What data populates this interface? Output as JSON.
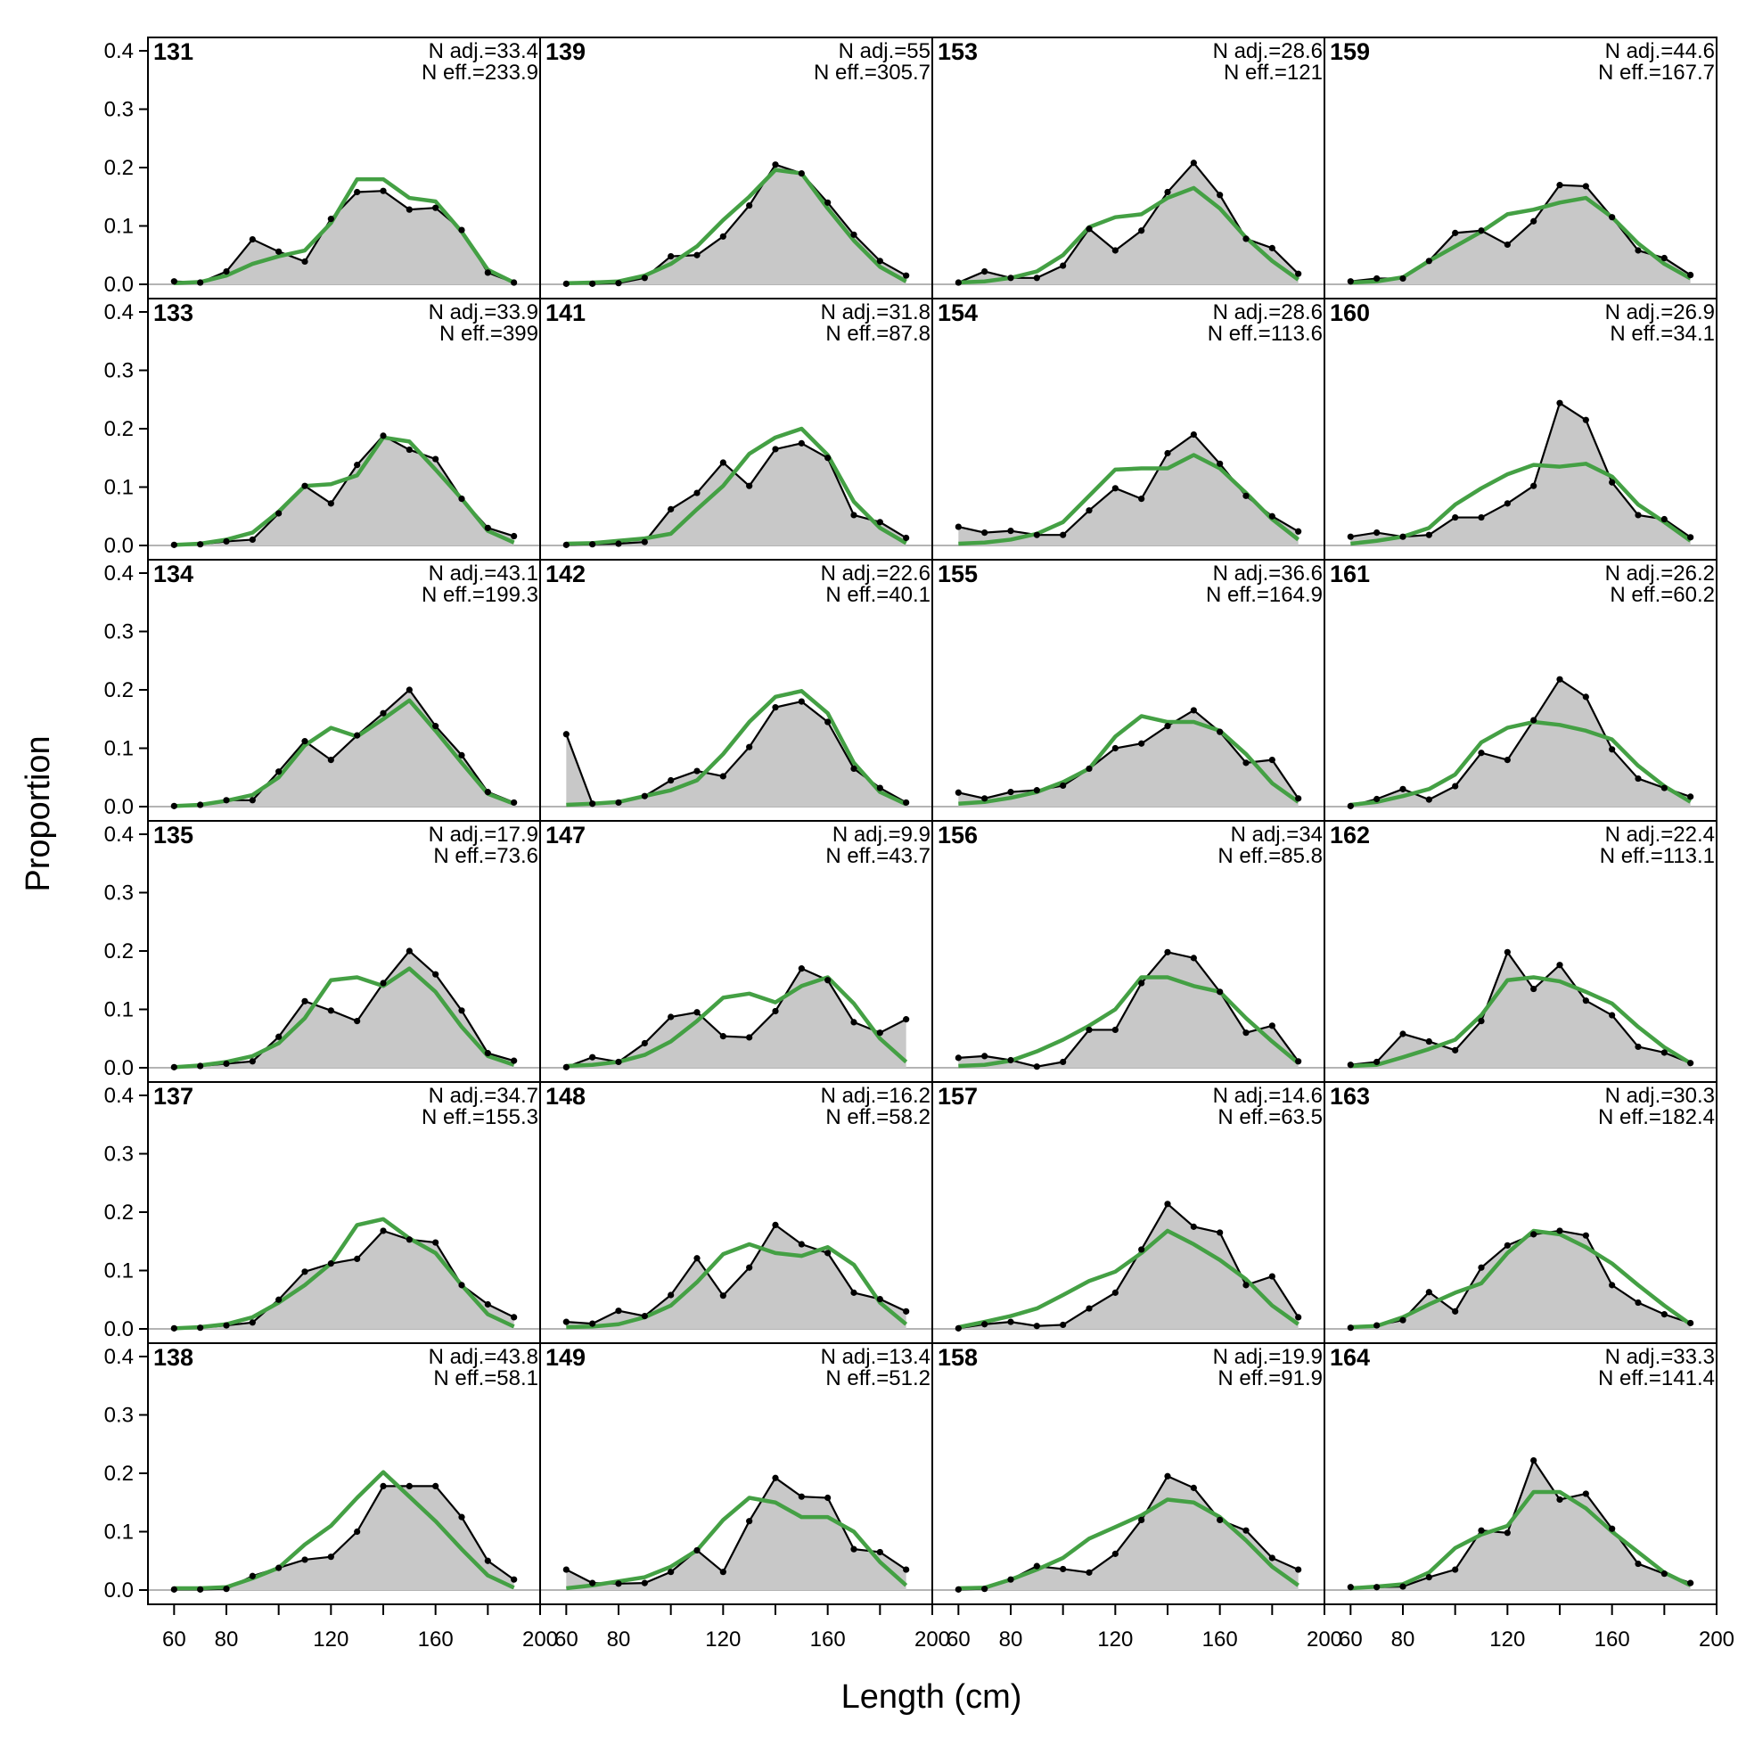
{
  "chart_data": {
    "type": "area",
    "xlabel": "Length (cm)",
    "ylabel": "Proportion",
    "x": [
      60,
      70,
      80,
      90,
      100,
      110,
      120,
      130,
      140,
      150,
      160,
      170,
      180,
      190
    ],
    "xlim": [
      50,
      200
    ],
    "ylim": [
      0,
      0.42
    ],
    "x_ticks": [
      60,
      80,
      120,
      160,
      200
    ],
    "y_ticks": [
      "0.0",
      "0.1",
      "0.2",
      "0.3",
      "0.4"
    ],
    "layout": "6 rows x 4 columns, filled column-wise",
    "colors": {
      "observed_fill": "#c8c8c8",
      "observed_line": "#000000",
      "expected_line": "#44a044",
      "zero_line": "#b4b4b4"
    },
    "panels": [
      {
        "id": "131",
        "n_adj": "N adj.=33.4",
        "n_eff": "N eff.=233.9",
        "obs": [
          0.005,
          0.003,
          0.022,
          0.077,
          0.056,
          0.039,
          0.112,
          0.158,
          0.16,
          0.128,
          0.131,
          0.093,
          0.02,
          0.003
        ],
        "exp": [
          0.002,
          0.004,
          0.015,
          0.035,
          0.048,
          0.058,
          0.105,
          0.18,
          0.18,
          0.148,
          0.142,
          0.09,
          0.025,
          0.003
        ]
      },
      {
        "id": "133",
        "n_adj": "N adj.=33.9",
        "n_eff": "N eff.=399",
        "obs": [
          0.001,
          0.002,
          0.007,
          0.01,
          0.055,
          0.102,
          0.072,
          0.138,
          0.188,
          0.164,
          0.148,
          0.08,
          0.03,
          0.016
        ],
        "exp": [
          0.001,
          0.003,
          0.01,
          0.022,
          0.058,
          0.102,
          0.105,
          0.12,
          0.185,
          0.178,
          0.13,
          0.08,
          0.025,
          0.005
        ]
      },
      {
        "id": "134",
        "n_adj": "N adj.=43.1",
        "n_eff": "N eff.=199.3",
        "obs": [
          0.001,
          0.003,
          0.011,
          0.011,
          0.06,
          0.112,
          0.08,
          0.122,
          0.16,
          0.2,
          0.138,
          0.088,
          0.025,
          0.007
        ],
        "exp": [
          0.001,
          0.003,
          0.01,
          0.02,
          0.05,
          0.105,
          0.135,
          0.12,
          0.15,
          0.182,
          0.13,
          0.075,
          0.022,
          0.005
        ]
      },
      {
        "id": "135",
        "n_adj": "N adj.=17.9",
        "n_eff": "N eff.=73.6",
        "obs": [
          0.001,
          0.003,
          0.007,
          0.011,
          0.053,
          0.114,
          0.098,
          0.08,
          0.145,
          0.2,
          0.16,
          0.098,
          0.025,
          0.012
        ],
        "exp": [
          0.001,
          0.004,
          0.01,
          0.02,
          0.042,
          0.085,
          0.15,
          0.155,
          0.14,
          0.17,
          0.13,
          0.07,
          0.02,
          0.005
        ]
      },
      {
        "id": "137",
        "n_adj": "N adj.=34.7",
        "n_eff": "N eff.=155.3",
        "obs": [
          0.001,
          0.002,
          0.006,
          0.011,
          0.05,
          0.098,
          0.112,
          0.12,
          0.168,
          0.153,
          0.148,
          0.075,
          0.042,
          0.02
        ],
        "exp": [
          0.001,
          0.003,
          0.008,
          0.02,
          0.045,
          0.075,
          0.112,
          0.178,
          0.188,
          0.155,
          0.13,
          0.075,
          0.025,
          0.004
        ]
      },
      {
        "id": "138",
        "n_adj": "N adj.=43.8",
        "n_eff": "N eff.=58.1",
        "obs": [
          0.001,
          0.001,
          0.002,
          0.024,
          0.038,
          0.052,
          0.057,
          0.1,
          0.178,
          0.178,
          0.178,
          0.125,
          0.05,
          0.018
        ],
        "exp": [
          0.003,
          0.003,
          0.005,
          0.02,
          0.038,
          0.078,
          0.11,
          0.158,
          0.202,
          0.16,
          0.118,
          0.07,
          0.025,
          0.004
        ]
      },
      {
        "id": "139",
        "n_adj": "N adj.=55",
        "n_eff": "N eff.=305.7",
        "obs": [
          0.001,
          0.001,
          0.002,
          0.011,
          0.048,
          0.05,
          0.082,
          0.135,
          0.205,
          0.19,
          0.14,
          0.085,
          0.04,
          0.015
        ],
        "exp": [
          0.002,
          0.003,
          0.005,
          0.015,
          0.035,
          0.065,
          0.11,
          0.15,
          0.196,
          0.19,
          0.13,
          0.075,
          0.03,
          0.005
        ]
      },
      {
        "id": "141",
        "n_adj": "N adj.=31.8",
        "n_eff": "N eff.=87.8",
        "obs": [
          0.001,
          0.002,
          0.003,
          0.006,
          0.062,
          0.09,
          0.142,
          0.102,
          0.165,
          0.175,
          0.15,
          0.052,
          0.04,
          0.013
        ],
        "exp": [
          0.003,
          0.004,
          0.008,
          0.012,
          0.02,
          0.062,
          0.102,
          0.157,
          0.185,
          0.2,
          0.155,
          0.075,
          0.03,
          0.004
        ]
      },
      {
        "id": "142",
        "n_adj": "N adj.=22.6",
        "n_eff": "N eff.=40.1",
        "obs": [
          0.124,
          0.005,
          0.007,
          0.018,
          0.045,
          0.061,
          0.052,
          0.102,
          0.17,
          0.18,
          0.145,
          0.065,
          0.032,
          0.007
        ],
        "exp": [
          0.003,
          0.005,
          0.008,
          0.018,
          0.028,
          0.045,
          0.09,
          0.145,
          0.188,
          0.198,
          0.16,
          0.075,
          0.025,
          0.004
        ]
      },
      {
        "id": "147",
        "n_adj": "N adj.=9.9",
        "n_eff": "N eff.=43.7",
        "obs": [
          0.001,
          0.018,
          0.01,
          0.042,
          0.087,
          0.095,
          0.054,
          0.052,
          0.097,
          0.17,
          0.15,
          0.078,
          0.06,
          0.083
        ],
        "exp": [
          0.003,
          0.005,
          0.01,
          0.022,
          0.045,
          0.08,
          0.12,
          0.127,
          0.112,
          0.14,
          0.155,
          0.11,
          0.05,
          0.01
        ]
      },
      {
        "id": "148",
        "n_adj": "N adj.=16.2",
        "n_eff": "N eff.=58.2",
        "obs": [
          0.012,
          0.009,
          0.031,
          0.022,
          0.058,
          0.121,
          0.057,
          0.105,
          0.178,
          0.145,
          0.13,
          0.062,
          0.051,
          0.03
        ],
        "exp": [
          0.003,
          0.004,
          0.008,
          0.02,
          0.04,
          0.08,
          0.128,
          0.145,
          0.13,
          0.125,
          0.14,
          0.11,
          0.045,
          0.008
        ]
      },
      {
        "id": "149",
        "n_adj": "N adj.=13.4",
        "n_eff": "N eff.=51.2",
        "obs": [
          0.035,
          0.012,
          0.011,
          0.012,
          0.031,
          0.068,
          0.031,
          0.118,
          0.192,
          0.16,
          0.158,
          0.07,
          0.065,
          0.035
        ],
        "exp": [
          0.003,
          0.008,
          0.015,
          0.022,
          0.04,
          0.068,
          0.12,
          0.158,
          0.15,
          0.125,
          0.125,
          0.1,
          0.048,
          0.008
        ]
      },
      {
        "id": "153",
        "n_adj": "N adj.=28.6",
        "n_eff": "N eff.=121",
        "obs": [
          0.003,
          0.022,
          0.011,
          0.011,
          0.032,
          0.095,
          0.058,
          0.092,
          0.158,
          0.208,
          0.153,
          0.078,
          0.062,
          0.018
        ],
        "exp": [
          0.003,
          0.005,
          0.011,
          0.022,
          0.05,
          0.098,
          0.115,
          0.12,
          0.148,
          0.165,
          0.13,
          0.08,
          0.04,
          0.008
        ]
      },
      {
        "id": "154",
        "n_adj": "N adj.=28.6",
        "n_eff": "N eff.=113.6",
        "obs": [
          0.032,
          0.022,
          0.025,
          0.018,
          0.018,
          0.06,
          0.098,
          0.08,
          0.158,
          0.19,
          0.14,
          0.085,
          0.05,
          0.024
        ],
        "exp": [
          0.003,
          0.005,
          0.01,
          0.02,
          0.04,
          0.085,
          0.13,
          0.132,
          0.132,
          0.155,
          0.132,
          0.09,
          0.045,
          0.01
        ]
      },
      {
        "id": "155",
        "n_adj": "N adj.=36.6",
        "n_eff": "N eff.=164.9",
        "obs": [
          0.024,
          0.014,
          0.025,
          0.028,
          0.036,
          0.065,
          0.1,
          0.108,
          0.138,
          0.165,
          0.128,
          0.075,
          0.08,
          0.014
        ],
        "exp": [
          0.005,
          0.008,
          0.015,
          0.025,
          0.042,
          0.065,
          0.12,
          0.155,
          0.145,
          0.145,
          0.13,
          0.09,
          0.04,
          0.008
        ]
      },
      {
        "id": "156",
        "n_adj": "N adj.=34",
        "n_eff": "N eff.=85.8",
        "obs": [
          0.017,
          0.02,
          0.013,
          0.002,
          0.01,
          0.065,
          0.065,
          0.145,
          0.198,
          0.188,
          0.13,
          0.06,
          0.072,
          0.011
        ],
        "exp": [
          0.003,
          0.005,
          0.012,
          0.028,
          0.048,
          0.072,
          0.1,
          0.155,
          0.155,
          0.14,
          0.13,
          0.085,
          0.045,
          0.008
        ]
      },
      {
        "id": "157",
        "n_adj": "N adj.=14.6",
        "n_eff": "N eff.=63.5",
        "obs": [
          0.001,
          0.008,
          0.012,
          0.005,
          0.007,
          0.035,
          0.062,
          0.136,
          0.214,
          0.175,
          0.165,
          0.075,
          0.09,
          0.02
        ],
        "exp": [
          0.003,
          0.012,
          0.022,
          0.035,
          0.058,
          0.082,
          0.098,
          0.13,
          0.168,
          0.145,
          0.118,
          0.085,
          0.04,
          0.008
        ]
      },
      {
        "id": "158",
        "n_adj": "N adj.=19.9",
        "n_eff": "N eff.=91.9",
        "obs": [
          0.001,
          0.002,
          0.018,
          0.041,
          0.036,
          0.03,
          0.062,
          0.12,
          0.195,
          0.175,
          0.12,
          0.102,
          0.055,
          0.035
        ],
        "exp": [
          0.003,
          0.004,
          0.018,
          0.035,
          0.055,
          0.088,
          0.108,
          0.128,
          0.155,
          0.15,
          0.125,
          0.085,
          0.04,
          0.008
        ]
      },
      {
        "id": "159",
        "n_adj": "N adj.=44.6",
        "n_eff": "N eff.=167.7",
        "obs": [
          0.005,
          0.01,
          0.01,
          0.04,
          0.088,
          0.092,
          0.068,
          0.108,
          0.17,
          0.168,
          0.115,
          0.058,
          0.045,
          0.016
        ],
        "exp": [
          0.003,
          0.005,
          0.012,
          0.04,
          0.065,
          0.09,
          0.12,
          0.128,
          0.14,
          0.148,
          0.115,
          0.07,
          0.035,
          0.01
        ]
      },
      {
        "id": "160",
        "n_adj": "N adj.=26.9",
        "n_eff": "N eff.=34.1",
        "obs": [
          0.015,
          0.022,
          0.015,
          0.018,
          0.048,
          0.048,
          0.072,
          0.102,
          0.244,
          0.215,
          0.108,
          0.052,
          0.045,
          0.014
        ],
        "exp": [
          0.003,
          0.008,
          0.015,
          0.03,
          0.07,
          0.098,
          0.122,
          0.138,
          0.135,
          0.14,
          0.118,
          0.07,
          0.04,
          0.008
        ]
      },
      {
        "id": "161",
        "n_adj": "N adj.=26.2",
        "n_eff": "N eff.=60.2",
        "obs": [
          0.001,
          0.013,
          0.03,
          0.012,
          0.035,
          0.092,
          0.08,
          0.148,
          0.218,
          0.188,
          0.098,
          0.048,
          0.032,
          0.017
        ],
        "exp": [
          0.003,
          0.008,
          0.018,
          0.03,
          0.055,
          0.11,
          0.135,
          0.145,
          0.14,
          0.13,
          0.115,
          0.07,
          0.035,
          0.008
        ]
      },
      {
        "id": "162",
        "n_adj": "N adj.=22.4",
        "n_eff": "N eff.=113.1",
        "obs": [
          0.005,
          0.01,
          0.058,
          0.045,
          0.03,
          0.08,
          0.198,
          0.135,
          0.176,
          0.115,
          0.09,
          0.036,
          0.026,
          0.008
        ],
        "exp": [
          0.003,
          0.005,
          0.018,
          0.032,
          0.048,
          0.09,
          0.15,
          0.155,
          0.148,
          0.13,
          0.11,
          0.07,
          0.035,
          0.008
        ]
      },
      {
        "id": "163",
        "n_adj": "N adj.=30.3",
        "n_eff": "N eff.=182.4",
        "obs": [
          0.002,
          0.006,
          0.015,
          0.063,
          0.03,
          0.105,
          0.143,
          0.162,
          0.168,
          0.16,
          0.075,
          0.045,
          0.025,
          0.01
        ],
        "exp": [
          0.003,
          0.005,
          0.02,
          0.042,
          0.062,
          0.078,
          0.13,
          0.168,
          0.162,
          0.14,
          0.112,
          0.075,
          0.04,
          0.008
        ]
      },
      {
        "id": "164",
        "n_adj": "N adj.=33.3",
        "n_eff": "N eff.=141.4",
        "obs": [
          0.005,
          0.005,
          0.006,
          0.022,
          0.035,
          0.102,
          0.098,
          0.222,
          0.155,
          0.165,
          0.105,
          0.045,
          0.028,
          0.012
        ],
        "exp": [
          0.003,
          0.006,
          0.01,
          0.03,
          0.072,
          0.095,
          0.11,
          0.168,
          0.168,
          0.14,
          0.1,
          0.065,
          0.03,
          0.008
        ]
      }
    ]
  }
}
